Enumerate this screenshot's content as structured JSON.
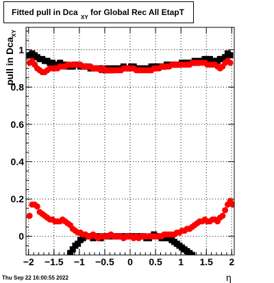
{
  "title": {
    "main": "Fitted pull in Dca",
    "sub": "XY",
    "rest": "for Global Rec All EtapT"
  },
  "ylabel": {
    "main": "pull in Dca",
    "sub": "XY"
  },
  "xlabel": "η",
  "timestamp": "Thu Sep 22 16:00:55 2022",
  "chart_data": {
    "type": "scatter",
    "title": "Fitted pull in Dca_XY for Global Rec All EtapT",
    "xlabel": "η",
    "ylabel": "pull in Dca_XY",
    "xlim": [
      -2.05,
      2.05
    ],
    "ylim": [
      -0.1,
      1.12
    ],
    "grid": true,
    "x_ticks": [
      -2,
      -1.5,
      -1,
      -0.5,
      0,
      0.5,
      1,
      1.5,
      2
    ],
    "x_tick_labels": [
      "−2",
      "−1.5",
      "−1",
      "−0.5",
      "0",
      "0.5",
      "1",
      "1.5",
      "2"
    ],
    "y_ticks": [
      0,
      0.2,
      0.4,
      0.6,
      0.8,
      1
    ],
    "y_tick_labels": [
      "0",
      "0.2",
      "0.4",
      "0.6",
      "0.8",
      "1"
    ],
    "series": [
      {
        "marker": "square",
        "color": "#000000",
        "points": [
          [
            -1.98,
            0.97
          ],
          [
            -1.93,
            0.98
          ],
          [
            -1.88,
            0.97
          ],
          [
            -1.83,
            0.96
          ],
          [
            -1.78,
            0.95
          ],
          [
            -1.73,
            0.95
          ],
          [
            -1.68,
            0.94
          ],
          [
            -1.63,
            0.94
          ],
          [
            -1.58,
            0.93
          ],
          [
            -1.53,
            0.93
          ],
          [
            -1.48,
            0.92
          ],
          [
            -1.43,
            0.92
          ],
          [
            -1.38,
            0.93
          ],
          [
            -1.33,
            0.92
          ],
          [
            -1.28,
            0.92
          ],
          [
            -1.23,
            0.91
          ],
          [
            -1.18,
            0.91
          ],
          [
            -1.13,
            0.91
          ],
          [
            -1.08,
            0.92
          ],
          [
            -1.03,
            0.92
          ],
          [
            -0.98,
            0.91
          ],
          [
            -0.93,
            0.91
          ],
          [
            -0.88,
            0.91
          ],
          [
            -0.83,
            0.91
          ],
          [
            -0.78,
            0.9
          ],
          [
            -0.73,
            0.9
          ],
          [
            -0.68,
            0.9
          ],
          [
            -0.63,
            0.9
          ],
          [
            -0.58,
            0.9
          ],
          [
            -0.53,
            0.9
          ],
          [
            -0.48,
            0.89
          ],
          [
            -0.43,
            0.9
          ],
          [
            -0.38,
            0.89
          ],
          [
            -0.33,
            0.9
          ],
          [
            -0.28,
            0.9
          ],
          [
            -0.23,
            0.9
          ],
          [
            -0.18,
            0.9
          ],
          [
            -0.13,
            0.91
          ],
          [
            -0.08,
            0.9
          ],
          [
            -0.03,
            0.9
          ],
          [
            0.02,
            0.91
          ],
          [
            0.07,
            0.91
          ],
          [
            0.12,
            0.9
          ],
          [
            0.17,
            0.9
          ],
          [
            0.22,
            0.9
          ],
          [
            0.27,
            0.9
          ],
          [
            0.32,
            0.9
          ],
          [
            0.37,
            0.9
          ],
          [
            0.42,
            0.91
          ],
          [
            0.47,
            0.91
          ],
          [
            0.52,
            0.91
          ],
          [
            0.57,
            0.91
          ],
          [
            0.62,
            0.91
          ],
          [
            0.67,
            0.91
          ],
          [
            0.72,
            0.92
          ],
          [
            0.77,
            0.92
          ],
          [
            0.82,
            0.92
          ],
          [
            0.87,
            0.92
          ],
          [
            0.92,
            0.92
          ],
          [
            0.97,
            0.92
          ],
          [
            1.02,
            0.93
          ],
          [
            1.07,
            0.93
          ],
          [
            1.12,
            0.93
          ],
          [
            1.17,
            0.93
          ],
          [
            1.22,
            0.93
          ],
          [
            1.27,
            0.94
          ],
          [
            1.32,
            0.93
          ],
          [
            1.37,
            0.94
          ],
          [
            1.42,
            0.94
          ],
          [
            1.47,
            0.95
          ],
          [
            1.52,
            0.95
          ],
          [
            1.57,
            0.95
          ],
          [
            1.62,
            0.94
          ],
          [
            1.67,
            0.94
          ],
          [
            1.72,
            0.94
          ],
          [
            1.77,
            0.95
          ],
          [
            1.82,
            0.95
          ],
          [
            1.87,
            0.96
          ],
          [
            1.92,
            0.98
          ],
          [
            1.97,
            0.97
          ],
          [
            -1.18,
            -0.09
          ],
          [
            -1.13,
            -0.07
          ],
          [
            -1.08,
            -0.05
          ],
          [
            -1.03,
            -0.04
          ],
          [
            -0.98,
            -0.02
          ],
          [
            -0.93,
            -0.01
          ],
          [
            -0.88,
            0.0
          ],
          [
            -0.83,
            0.0
          ],
          [
            -0.78,
            0.0
          ],
          [
            -0.73,
            -0.01
          ],
          [
            -0.68,
            0.0
          ],
          [
            -0.63,
            0.0
          ],
          [
            -0.58,
            -0.01
          ],
          [
            -0.53,
            0.0
          ],
          [
            -0.48,
            0.0
          ],
          [
            -0.43,
            0.0
          ],
          [
            -0.38,
            0.0
          ],
          [
            -0.33,
            0.0
          ],
          [
            -0.28,
            0.0
          ],
          [
            -0.23,
            0.0
          ],
          [
            -0.18,
            0.0
          ],
          [
            -0.13,
            0.0
          ],
          [
            -0.08,
            0.0
          ],
          [
            -0.03,
            0.0
          ],
          [
            0.02,
            0.0
          ],
          [
            0.07,
            0.0
          ],
          [
            0.12,
            0.0
          ],
          [
            0.17,
            0.0
          ],
          [
            0.22,
            0.0
          ],
          [
            0.27,
            0.0
          ],
          [
            0.32,
            -0.01
          ],
          [
            0.37,
            -0.01
          ],
          [
            0.42,
            0.0
          ],
          [
            0.47,
            0.01
          ],
          [
            0.52,
            0.0
          ],
          [
            0.57,
            0.0
          ],
          [
            0.62,
            -0.01
          ],
          [
            0.67,
            -0.01
          ],
          [
            0.72,
            -0.01
          ],
          [
            0.77,
            -0.01
          ],
          [
            0.82,
            -0.02
          ],
          [
            0.87,
            -0.03
          ],
          [
            0.92,
            -0.04
          ],
          [
            0.97,
            -0.05
          ],
          [
            1.02,
            -0.06
          ],
          [
            1.07,
            -0.07
          ],
          [
            1.12,
            -0.08
          ],
          [
            1.17,
            -0.09
          ],
          [
            1.22,
            -0.1
          ]
        ]
      },
      {
        "marker": "circle",
        "color": "#ff0000",
        "points": [
          [
            -1.98,
            0.93
          ],
          [
            -1.93,
            0.94
          ],
          [
            -1.88,
            0.92
          ],
          [
            -1.83,
            0.9
          ],
          [
            -1.78,
            0.89
          ],
          [
            -1.73,
            0.88
          ],
          [
            -1.68,
            0.88
          ],
          [
            -1.63,
            0.89
          ],
          [
            -1.58,
            0.9
          ],
          [
            -1.53,
            0.9
          ],
          [
            -1.48,
            0.9
          ],
          [
            -1.43,
            0.9
          ],
          [
            -1.38,
            0.91
          ],
          [
            -1.33,
            0.91
          ],
          [
            -1.28,
            0.91
          ],
          [
            -1.23,
            0.92
          ],
          [
            -1.18,
            0.92
          ],
          [
            -1.13,
            0.92
          ],
          [
            -1.08,
            0.92
          ],
          [
            -1.03,
            0.92
          ],
          [
            -0.98,
            0.92
          ],
          [
            -0.93,
            0.91
          ],
          [
            -0.88,
            0.91
          ],
          [
            -0.83,
            0.91
          ],
          [
            -0.78,
            0.91
          ],
          [
            -0.73,
            0.9
          ],
          [
            -0.68,
            0.9
          ],
          [
            -0.63,
            0.9
          ],
          [
            -0.58,
            0.89
          ],
          [
            -0.53,
            0.9
          ],
          [
            -0.48,
            0.89
          ],
          [
            -0.43,
            0.89
          ],
          [
            -0.38,
            0.89
          ],
          [
            -0.33,
            0.89
          ],
          [
            -0.28,
            0.89
          ],
          [
            -0.23,
            0.89
          ],
          [
            -0.18,
            0.89
          ],
          [
            -0.13,
            0.9
          ],
          [
            -0.08,
            0.9
          ],
          [
            -0.03,
            0.9
          ],
          [
            0.02,
            0.9
          ],
          [
            0.07,
            0.9
          ],
          [
            0.12,
            0.89
          ],
          [
            0.17,
            0.89
          ],
          [
            0.22,
            0.89
          ],
          [
            0.27,
            0.89
          ],
          [
            0.32,
            0.89
          ],
          [
            0.37,
            0.89
          ],
          [
            0.42,
            0.89
          ],
          [
            0.47,
            0.9
          ],
          [
            0.52,
            0.9
          ],
          [
            0.57,
            0.9
          ],
          [
            0.62,
            0.91
          ],
          [
            0.67,
            0.91
          ],
          [
            0.72,
            0.91
          ],
          [
            0.77,
            0.91
          ],
          [
            0.82,
            0.92
          ],
          [
            0.87,
            0.92
          ],
          [
            0.92,
            0.92
          ],
          [
            0.97,
            0.92
          ],
          [
            1.02,
            0.92
          ],
          [
            1.07,
            0.92
          ],
          [
            1.12,
            0.92
          ],
          [
            1.17,
            0.92
          ],
          [
            1.22,
            0.93
          ],
          [
            1.27,
            0.93
          ],
          [
            1.32,
            0.93
          ],
          [
            1.37,
            0.93
          ],
          [
            1.42,
            0.93
          ],
          [
            1.47,
            0.93
          ],
          [
            1.52,
            0.92
          ],
          [
            1.57,
            0.92
          ],
          [
            1.62,
            0.92
          ],
          [
            1.67,
            0.92
          ],
          [
            1.72,
            0.91
          ],
          [
            1.77,
            0.9
          ],
          [
            1.82,
            0.91
          ],
          [
            1.87,
            0.93
          ],
          [
            1.92,
            0.94
          ],
          [
            1.97,
            0.93
          ],
          [
            -1.98,
            0.11
          ],
          [
            -1.93,
            0.17
          ],
          [
            -1.88,
            0.17
          ],
          [
            -1.83,
            0.16
          ],
          [
            -1.78,
            0.13
          ],
          [
            -1.73,
            0.12
          ],
          [
            -1.68,
            0.11
          ],
          [
            -1.63,
            0.1
          ],
          [
            -1.58,
            0.09
          ],
          [
            -1.53,
            0.09
          ],
          [
            -1.48,
            0.08
          ],
          [
            -1.43,
            0.08
          ],
          [
            -1.38,
            0.08
          ],
          [
            -1.33,
            0.09
          ],
          [
            -1.28,
            0.08
          ],
          [
            -1.23,
            0.07
          ],
          [
            -1.18,
            0.06
          ],
          [
            -1.13,
            0.04
          ],
          [
            -1.08,
            0.03
          ],
          [
            -1.03,
            0.02
          ],
          [
            -0.98,
            0.02
          ],
          [
            -0.93,
            0.01
          ],
          [
            -0.88,
            0.01
          ],
          [
            -0.83,
            0.0
          ],
          [
            -0.78,
            0.0
          ],
          [
            -0.73,
            0.01
          ],
          [
            -0.68,
            0.0
          ],
          [
            -0.63,
            -0.01
          ],
          [
            -0.58,
            0.0
          ],
          [
            -0.53,
            0.0
          ],
          [
            -0.48,
            0.0
          ],
          [
            -0.43,
            0.0
          ],
          [
            -0.38,
            0.01
          ],
          [
            -0.33,
            0.0
          ],
          [
            -0.28,
            0.0
          ],
          [
            -0.23,
            0.0
          ],
          [
            -0.18,
            0.0
          ],
          [
            -0.13,
            -0.01
          ],
          [
            -0.08,
            0.0
          ],
          [
            -0.03,
            0.0
          ],
          [
            0.02,
            0.0
          ],
          [
            0.07,
            -0.01
          ],
          [
            0.12,
            0.0
          ],
          [
            0.17,
            -0.01
          ],
          [
            0.22,
            0.0
          ],
          [
            0.27,
            0.0
          ],
          [
            0.32,
            0.0
          ],
          [
            0.37,
            0.0
          ],
          [
            0.42,
            0.0
          ],
          [
            0.47,
            0.0
          ],
          [
            0.52,
            0.0
          ],
          [
            0.57,
            0.0
          ],
          [
            0.62,
            0.0
          ],
          [
            0.67,
            0.01
          ],
          [
            0.72,
            0.01
          ],
          [
            0.77,
            0.01
          ],
          [
            0.82,
            0.01
          ],
          [
            0.87,
            0.01
          ],
          [
            0.92,
            0.02
          ],
          [
            0.97,
            0.02
          ],
          [
            1.02,
            0.03
          ],
          [
            1.07,
            0.03
          ],
          [
            1.12,
            0.04
          ],
          [
            1.17,
            0.04
          ],
          [
            1.22,
            0.05
          ],
          [
            1.27,
            0.06
          ],
          [
            1.32,
            0.07
          ],
          [
            1.37,
            0.08
          ],
          [
            1.42,
            0.08
          ],
          [
            1.47,
            0.09
          ],
          [
            1.52,
            0.08
          ],
          [
            1.57,
            0.08
          ],
          [
            1.62,
            0.09
          ],
          [
            1.67,
            0.09
          ],
          [
            1.72,
            0.08
          ],
          [
            1.77,
            0.1
          ],
          [
            1.82,
            0.11
          ],
          [
            1.87,
            0.14
          ],
          [
            1.92,
            0.17
          ],
          [
            1.97,
            0.19
          ],
          [
            2.02,
            0.17
          ]
        ]
      }
    ]
  }
}
